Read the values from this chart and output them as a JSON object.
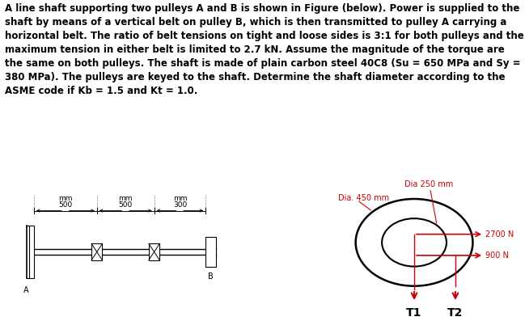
{
  "text_block": "A line shaft supporting two pulleys A and B is shown in Figure (below). Power is supplied to the shaft by means of a vertical belt on pulley B, which is then transmitted to pulley A carrying a horizontal belt. The ratio of belt tensions on tight and loose sides is 3:1 for both pulleys and the maximum tension in either belt is limited to 2.7 kN. Assume the magnitude of the torque are the same on both pulleys. The shaft is made of plain carbon steel 40C8 (Su = 650 MPa and Sy = 380 MPa). The pulleys are keyed to the shaft. Determine the shaft diameter according to the ASME code if Kb = 1.5 and Kt = 1.0.",
  "label_A": "A",
  "label_B": "B",
  "label_T1": "T1",
  "label_T2": "T2",
  "label_dia_450": "Dia. 450 mm",
  "label_dia_250": "Dia 250 mm",
  "label_2700": "2700 N",
  "label_900": "900 N",
  "dim1": "500",
  "dim1_unit": "mm",
  "dim2": "500",
  "dim2_unit": "mm",
  "dim3": "300",
  "dim3_unit": "mm",
  "arrow_color": "#cc0000",
  "line_color": "#000000",
  "bg_color": "#ffffff",
  "font_size_text": 8.5,
  "font_size_labels": 7,
  "font_size_dim": 6.5
}
